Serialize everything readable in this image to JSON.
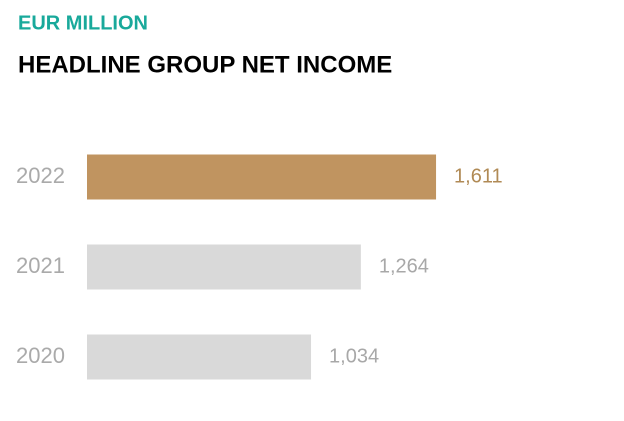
{
  "chart_data": {
    "type": "hbar",
    "subtitle": "EUR MILLION",
    "title": "HEADLINE GROUP NET INCOME",
    "categories": [
      "2022",
      "2021",
      "2020"
    ],
    "values": [
      1611,
      1264,
      1034
    ],
    "value_labels": [
      "1,611",
      "1,264",
      "1,034"
    ],
    "colors": [
      "#c09460",
      "#d9d9d9",
      "#d9d9d9"
    ],
    "label_colors": [
      "#b08a55",
      "#a8a8a8",
      "#a8a8a8"
    ],
    "subtitle_color": "#19a99b",
    "xlim": [
      0,
      2400
    ]
  }
}
